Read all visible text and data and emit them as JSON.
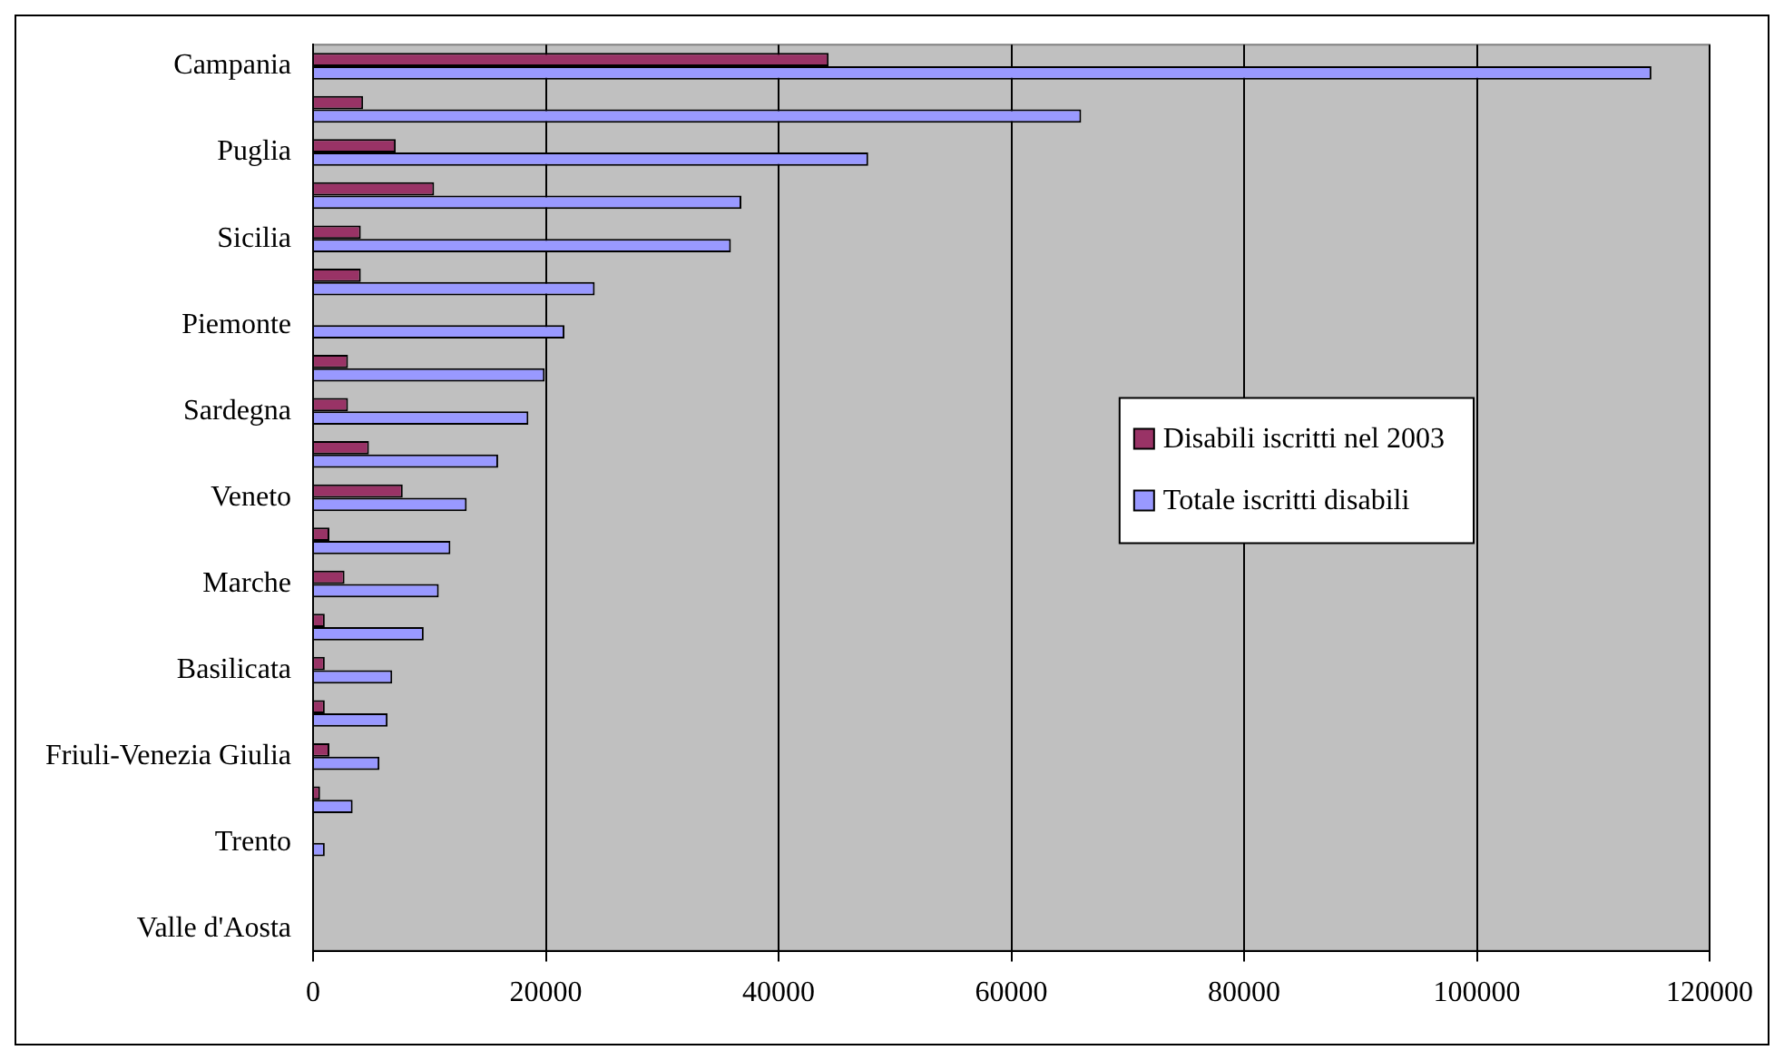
{
  "chart_data": {
    "type": "bar",
    "orientation": "horizontal",
    "categories": [
      "Campania",
      null,
      "Puglia",
      null,
      "Sicilia",
      null,
      "Piemonte",
      null,
      "Sardegna",
      null,
      "Veneto",
      null,
      "Marche",
      null,
      "Basilicata",
      null,
      "Friuli-Venezia Giulia",
      null,
      "Trento",
      null,
      "Valle d'Aosta"
    ],
    "series": [
      {
        "name": "Disabili iscritti nel 2003",
        "color": "#993366",
        "values": [
          44300,
          4300,
          7100,
          10400,
          4100,
          4100,
          null,
          3000,
          3000,
          4800,
          7700,
          1400,
          2700,
          1000,
          1000,
          1000,
          1400,
          600,
          null,
          null,
          null
        ]
      },
      {
        "name": "Totale iscritti disabili",
        "color": "#9999ff",
        "values": [
          115000,
          66000,
          47700,
          36800,
          35900,
          24200,
          21600,
          19900,
          18500,
          15900,
          13200,
          11800,
          10800,
          9500,
          6800,
          6400,
          5700,
          3400,
          1000,
          null,
          null
        ]
      }
    ],
    "xlim": [
      0,
      120000
    ],
    "xticks": [
      0,
      20000,
      40000,
      60000,
      80000,
      100000,
      120000
    ],
    "grid": "x",
    "legend": "right"
  }
}
